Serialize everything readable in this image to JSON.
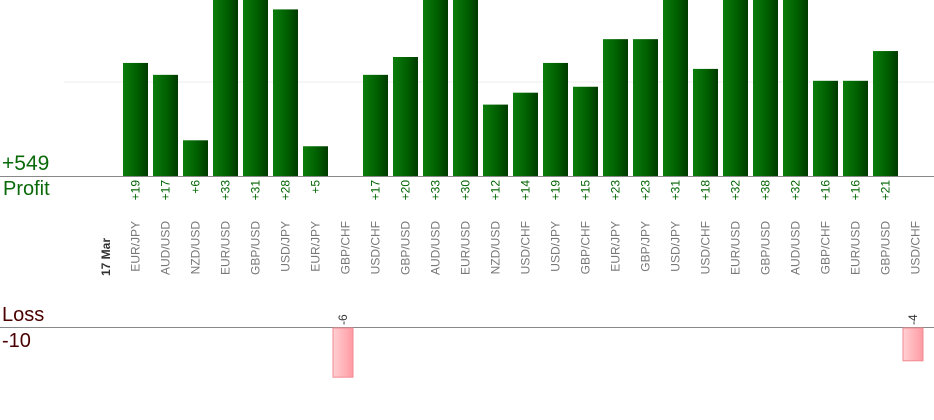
{
  "summary": {
    "total_profit": "+549",
    "profit_label": "Profit",
    "loss_label": "Loss",
    "total_loss": "-10"
  },
  "chart_data": {
    "type": "bar",
    "date_label": "17 Mar",
    "categories": [
      "EUR/JPY",
      "AUD/USD",
      "NZD/USD",
      "EUR/USD",
      "GBP/USD",
      "USD/JPY",
      "EUR/JPY",
      "GBP/CHF",
      "USD/CHF",
      "GBP/USD",
      "AUD/USD",
      "EUR/USD",
      "NZD/USD",
      "USD/CHF",
      "USD/JPY",
      "GBP/CHF",
      "EUR/JPY",
      "GBP/JPY",
      "USD/JPY",
      "USD/CHF",
      "EUR/USD",
      "GBP/USD",
      "AUD/USD",
      "GBP/CHF",
      "EUR/USD",
      "GBP/USD",
      "USD/CHF"
    ],
    "value_labels": [
      "+19",
      "+17",
      "+6",
      "+33",
      "+31",
      "+28",
      "+5",
      "-6",
      "+17",
      "+20",
      "+33",
      "+30",
      "+12",
      "+14",
      "+19",
      "+15",
      "+23",
      "+23",
      "+31",
      "+18",
      "+32",
      "+38",
      "+32",
      "+16",
      "+16",
      "+21",
      "-4"
    ],
    "values": [
      19,
      17,
      6,
      33,
      31,
      28,
      5,
      -6,
      17,
      20,
      33,
      30,
      12,
      14,
      19,
      15,
      23,
      23,
      31,
      18,
      32,
      38,
      32,
      16,
      16,
      21,
      -4
    ],
    "colors": {
      "profit": "#006400",
      "loss": "#ffb3b8"
    }
  }
}
